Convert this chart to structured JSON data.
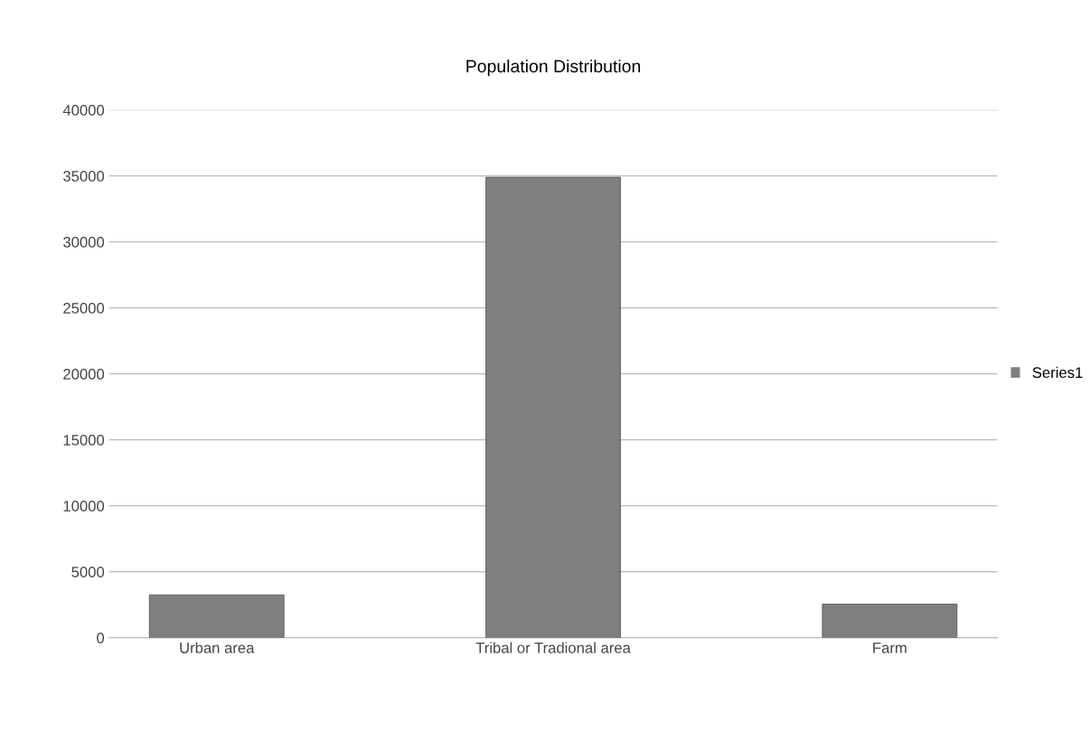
{
  "chart_data": {
    "type": "bar",
    "title": "Population Distribution",
    "categories": [
      "Urban area",
      "Tribal or Tradional area",
      "Farm"
    ],
    "series": [
      {
        "name": "Series1",
        "color": "#7f7f7f",
        "values": [
          3250,
          34900,
          2550
        ]
      }
    ],
    "ylim": [
      0,
      40000
    ],
    "yticks": [
      0,
      5000,
      10000,
      15000,
      20000,
      25000,
      30000,
      35000,
      40000
    ],
    "grid": "y",
    "legend": "right"
  }
}
